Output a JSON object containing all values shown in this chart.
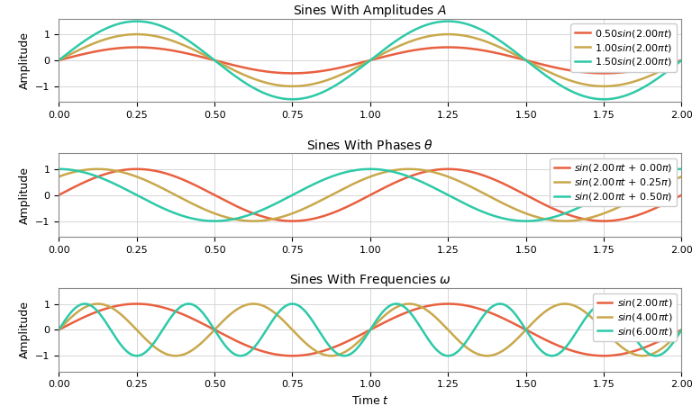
{
  "title1": "Sines With Amplitudes $A$",
  "title2": "Sines With Phases $\\theta$",
  "title3": "Sines With Frequencies $\\omega$",
  "xlabel": "Time $t$",
  "ylabel": "Amplitude",
  "xlim": [
    0.0,
    2.0
  ],
  "ylim": [
    -1.6,
    1.6
  ],
  "xticks": [
    0.0,
    0.25,
    0.5,
    0.75,
    1.0,
    1.25,
    1.5,
    1.75,
    2.0
  ],
  "yticks": [
    -1,
    0,
    1
  ],
  "colors": {
    "red": "#E86040",
    "gold": "#C9A84C",
    "teal": "#2EC9A8"
  },
  "amp_series": [
    {
      "A": 0.5,
      "omega": 1.0,
      "phase": 0.0,
      "label": "0.50$sin$(2.00$\\pi t$)"
    },
    {
      "A": 1.0,
      "omega": 1.0,
      "phase": 0.0,
      "label": "1.00$sin$(2.00$\\pi t$)"
    },
    {
      "A": 1.5,
      "omega": 1.0,
      "phase": 0.0,
      "label": "1.50$sin$(2.00$\\pi t$)"
    }
  ],
  "phase_series": [
    {
      "A": 1.0,
      "omega": 1.0,
      "phase": 0.0,
      "label": "$sin$(2.00$\\pi t$ + 0.00$\\pi$)"
    },
    {
      "A": 1.0,
      "omega": 1.0,
      "phase": 0.25,
      "label": "$sin$(2.00$\\pi t$ + 0.25$\\pi$)"
    },
    {
      "A": 1.0,
      "omega": 1.0,
      "phase": 0.5,
      "label": "$sin$(2.00$\\pi t$ + 0.50$\\pi$)"
    }
  ],
  "freq_series": [
    {
      "A": 1.0,
      "omega": 1.0,
      "phase": 0.0,
      "label": "$sin$(2.00$\\pi t$)"
    },
    {
      "A": 1.0,
      "omega": 2.0,
      "phase": 0.0,
      "label": "$sin$(4.00$\\pi t$)"
    },
    {
      "A": 1.0,
      "omega": 3.0,
      "phase": 0.0,
      "label": "$sin$(6.00$\\pi t$)"
    }
  ],
  "linewidth": 1.8,
  "legend_fontsize": 8.0,
  "title_fontsize": 10.0,
  "label_fontsize": 9,
  "tick_fontsize": 8
}
